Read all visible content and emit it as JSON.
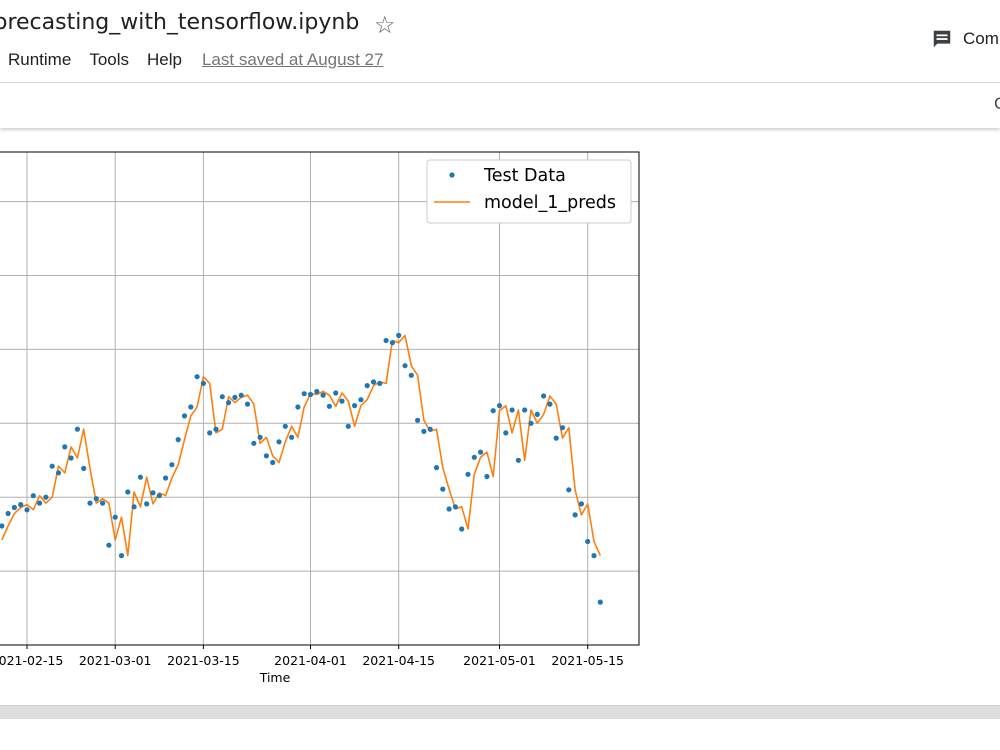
{
  "notebook": {
    "title": "orecasting_with_tensorflow.ipynb"
  },
  "menu": {
    "items": [
      "Runtime",
      "Tools",
      "Help"
    ],
    "last_saved": "Last saved at August 27"
  },
  "header": {
    "comments_label": "Com",
    "toolbar_edge": "C"
  },
  "icons": {
    "star": "star-outline-icon",
    "comments": "comment-icon"
  },
  "colors": {
    "test_data": "#1f77b4",
    "predictions": "#ff7f0e"
  },
  "chart_data": {
    "type": "line",
    "xlabel": "Time",
    "x_ticks": [
      "2021-02-15",
      "2021-03-01",
      "2021-03-15",
      "2021-04-01",
      "2021-04-15",
      "2021-05-01",
      "2021-05-15"
    ],
    "xlim": [
      "2021-02-11",
      "2021-05-20"
    ],
    "grid": true,
    "legend_position": "top-right",
    "series": [
      {
        "name": "Test Data",
        "style": "markers",
        "points": [
          [
            "2021-02-11",
            1.61
          ],
          [
            "2021-02-12",
            1.78
          ],
          [
            "2021-02-13",
            1.86
          ],
          [
            "2021-02-14",
            1.9
          ],
          [
            "2021-02-15",
            1.83
          ],
          [
            "2021-02-16",
            2.02
          ],
          [
            "2021-02-17",
            1.92
          ],
          [
            "2021-02-18",
            2.0
          ],
          [
            "2021-02-19",
            2.42
          ],
          [
            "2021-02-20",
            2.33
          ],
          [
            "2021-02-21",
            2.68
          ],
          [
            "2021-02-22",
            2.53
          ],
          [
            "2021-02-23",
            2.92
          ],
          [
            "2021-02-24",
            2.39
          ],
          [
            "2021-02-25",
            1.92
          ],
          [
            "2021-02-26",
            1.98
          ],
          [
            "2021-02-27",
            1.92
          ],
          [
            "2021-02-28",
            1.35
          ],
          [
            "2021-03-01",
            1.73
          ],
          [
            "2021-03-02",
            1.21
          ],
          [
            "2021-03-03",
            2.07
          ],
          [
            "2021-03-04",
            1.87
          ],
          [
            "2021-03-05",
            2.27
          ],
          [
            "2021-03-06",
            1.91
          ],
          [
            "2021-03-07",
            2.06
          ],
          [
            "2021-03-08",
            2.02
          ],
          [
            "2021-03-09",
            2.26
          ],
          [
            "2021-03-10",
            2.44
          ],
          [
            "2021-03-11",
            2.78
          ],
          [
            "2021-03-12",
            3.1
          ],
          [
            "2021-03-13",
            3.22
          ],
          [
            "2021-03-14",
            3.63
          ],
          [
            "2021-03-15",
            3.54
          ],
          [
            "2021-03-16",
            2.87
          ],
          [
            "2021-03-17",
            2.92
          ],
          [
            "2021-03-18",
            3.36
          ],
          [
            "2021-03-19",
            3.28
          ],
          [
            "2021-03-20",
            3.35
          ],
          [
            "2021-03-21",
            3.38
          ],
          [
            "2021-03-22",
            3.26
          ],
          [
            "2021-03-23",
            2.73
          ],
          [
            "2021-03-24",
            2.81
          ],
          [
            "2021-03-25",
            2.56
          ],
          [
            "2021-03-26",
            2.47
          ],
          [
            "2021-03-27",
            2.75
          ],
          [
            "2021-03-28",
            2.96
          ],
          [
            "2021-03-29",
            2.81
          ],
          [
            "2021-03-30",
            3.22
          ],
          [
            "2021-03-31",
            3.4
          ],
          [
            "2021-04-01",
            3.39
          ],
          [
            "2021-04-02",
            3.43
          ],
          [
            "2021-04-03",
            3.38
          ],
          [
            "2021-04-04",
            3.23
          ],
          [
            "2021-04-05",
            3.41
          ],
          [
            "2021-04-06",
            3.3
          ],
          [
            "2021-04-07",
            2.96
          ],
          [
            "2021-04-08",
            3.24
          ],
          [
            "2021-04-09",
            3.32
          ],
          [
            "2021-04-10",
            3.51
          ],
          [
            "2021-04-11",
            3.56
          ],
          [
            "2021-04-12",
            3.54
          ],
          [
            "2021-04-13",
            4.12
          ],
          [
            "2021-04-14",
            4.09
          ],
          [
            "2021-04-15",
            4.19
          ],
          [
            "2021-04-16",
            3.78
          ],
          [
            "2021-04-17",
            3.65
          ],
          [
            "2021-04-18",
            3.04
          ],
          [
            "2021-04-19",
            2.89
          ],
          [
            "2021-04-20",
            2.92
          ],
          [
            "2021-04-21",
            2.4
          ],
          [
            "2021-04-22",
            2.11
          ],
          [
            "2021-04-23",
            1.84
          ],
          [
            "2021-04-24",
            1.87
          ],
          [
            "2021-04-25",
            1.57
          ],
          [
            "2021-04-26",
            2.31
          ],
          [
            "2021-04-27",
            2.54
          ],
          [
            "2021-04-28",
            2.61
          ],
          [
            "2021-04-29",
            2.28
          ],
          [
            "2021-04-30",
            3.17
          ],
          [
            "2021-05-01",
            3.24
          ],
          [
            "2021-05-02",
            2.87
          ],
          [
            "2021-05-03",
            3.18
          ],
          [
            "2021-05-04",
            2.5
          ],
          [
            "2021-05-05",
            3.18
          ],
          [
            "2021-05-06",
            3.0
          ],
          [
            "2021-05-07",
            3.12
          ],
          [
            "2021-05-08",
            3.37
          ],
          [
            "2021-05-09",
            3.26
          ],
          [
            "2021-05-10",
            2.8
          ],
          [
            "2021-05-11",
            2.94
          ],
          [
            "2021-05-12",
            2.1
          ],
          [
            "2021-05-13",
            1.76
          ],
          [
            "2021-05-14",
            1.91
          ],
          [
            "2021-05-15",
            1.4
          ],
          [
            "2021-05-16",
            1.21
          ],
          [
            "2021-05-17",
            0.58
          ]
        ]
      },
      {
        "name": "model_1_preds",
        "style": "line",
        "points": [
          [
            "2021-02-11",
            1.42
          ],
          [
            "2021-02-12",
            1.61
          ],
          [
            "2021-02-13",
            1.78
          ],
          [
            "2021-02-14",
            1.86
          ],
          [
            "2021-02-15",
            1.9
          ],
          [
            "2021-02-16",
            1.83
          ],
          [
            "2021-02-17",
            2.02
          ],
          [
            "2021-02-18",
            1.92
          ],
          [
            "2021-02-19",
            2.0
          ],
          [
            "2021-02-20",
            2.42
          ],
          [
            "2021-02-21",
            2.33
          ],
          [
            "2021-02-22",
            2.68
          ],
          [
            "2021-02-23",
            2.53
          ],
          [
            "2021-02-24",
            2.92
          ],
          [
            "2021-02-25",
            2.39
          ],
          [
            "2021-02-26",
            1.92
          ],
          [
            "2021-02-27",
            1.98
          ],
          [
            "2021-02-28",
            1.92
          ],
          [
            "2021-03-01",
            1.42
          ],
          [
            "2021-03-02",
            1.73
          ],
          [
            "2021-03-03",
            1.21
          ],
          [
            "2021-03-04",
            2.07
          ],
          [
            "2021-03-05",
            1.87
          ],
          [
            "2021-03-06",
            2.27
          ],
          [
            "2021-03-07",
            1.91
          ],
          [
            "2021-03-08",
            2.06
          ],
          [
            "2021-03-09",
            2.02
          ],
          [
            "2021-03-10",
            2.26
          ],
          [
            "2021-03-11",
            2.44
          ],
          [
            "2021-03-12",
            2.78
          ],
          [
            "2021-03-13",
            3.1
          ],
          [
            "2021-03-14",
            3.22
          ],
          [
            "2021-03-15",
            3.63
          ],
          [
            "2021-03-16",
            3.54
          ],
          [
            "2021-03-17",
            2.87
          ],
          [
            "2021-03-18",
            2.92
          ],
          [
            "2021-03-19",
            3.36
          ],
          [
            "2021-03-20",
            3.28
          ],
          [
            "2021-03-21",
            3.35
          ],
          [
            "2021-03-22",
            3.38
          ],
          [
            "2021-03-23",
            3.26
          ],
          [
            "2021-03-24",
            2.73
          ],
          [
            "2021-03-25",
            2.81
          ],
          [
            "2021-03-26",
            2.56
          ],
          [
            "2021-03-27",
            2.47
          ],
          [
            "2021-03-28",
            2.75
          ],
          [
            "2021-03-29",
            2.96
          ],
          [
            "2021-03-30",
            2.81
          ],
          [
            "2021-03-31",
            3.22
          ],
          [
            "2021-04-01",
            3.4
          ],
          [
            "2021-04-02",
            3.39
          ],
          [
            "2021-04-03",
            3.43
          ],
          [
            "2021-04-04",
            3.38
          ],
          [
            "2021-04-05",
            3.23
          ],
          [
            "2021-04-06",
            3.41
          ],
          [
            "2021-04-07",
            3.3
          ],
          [
            "2021-04-08",
            2.96
          ],
          [
            "2021-04-09",
            3.24
          ],
          [
            "2021-04-10",
            3.32
          ],
          [
            "2021-04-11",
            3.51
          ],
          [
            "2021-04-12",
            3.56
          ],
          [
            "2021-04-13",
            3.54
          ],
          [
            "2021-04-14",
            4.12
          ],
          [
            "2021-04-15",
            4.09
          ],
          [
            "2021-04-16",
            4.19
          ],
          [
            "2021-04-17",
            3.78
          ],
          [
            "2021-04-18",
            3.65
          ],
          [
            "2021-04-19",
            3.04
          ],
          [
            "2021-04-20",
            2.89
          ],
          [
            "2021-04-21",
            2.92
          ],
          [
            "2021-04-22",
            2.4
          ],
          [
            "2021-04-23",
            2.11
          ],
          [
            "2021-04-24",
            1.84
          ],
          [
            "2021-04-25",
            1.87
          ],
          [
            "2021-04-26",
            1.57
          ],
          [
            "2021-04-27",
            2.31
          ],
          [
            "2021-04-28",
            2.54
          ],
          [
            "2021-04-29",
            2.61
          ],
          [
            "2021-04-30",
            2.28
          ],
          [
            "2021-05-01",
            3.17
          ],
          [
            "2021-05-02",
            3.24
          ],
          [
            "2021-05-03",
            2.87
          ],
          [
            "2021-05-04",
            3.18
          ],
          [
            "2021-05-05",
            2.5
          ],
          [
            "2021-05-06",
            3.18
          ],
          [
            "2021-05-07",
            3.0
          ],
          [
            "2021-05-08",
            3.12
          ],
          [
            "2021-05-09",
            3.37
          ],
          [
            "2021-05-10",
            3.26
          ],
          [
            "2021-05-11",
            2.8
          ],
          [
            "2021-05-12",
            2.94
          ],
          [
            "2021-05-13",
            2.1
          ],
          [
            "2021-05-14",
            1.76
          ],
          [
            "2021-05-15",
            1.91
          ],
          [
            "2021-05-16",
            1.4
          ],
          [
            "2021-05-17",
            1.21
          ]
        ]
      }
    ]
  }
}
